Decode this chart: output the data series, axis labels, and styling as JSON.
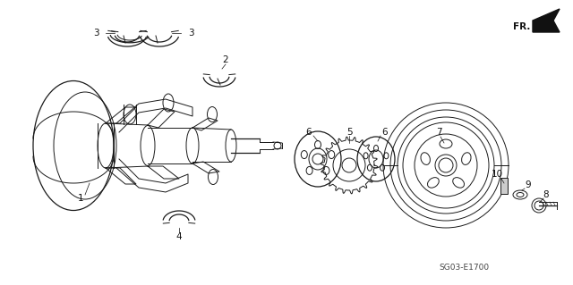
{
  "bg_color": "#ffffff",
  "line_color": "#1a1a1a",
  "diagram_code": "SG03-E1700",
  "figsize": [
    6.4,
    3.19
  ],
  "dpi": 100
}
